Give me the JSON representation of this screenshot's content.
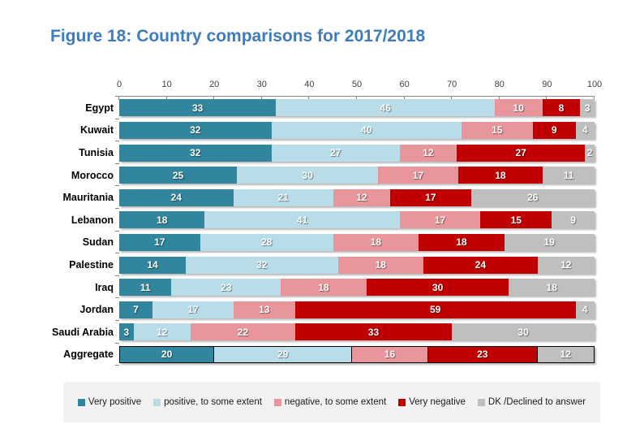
{
  "title": "Figure 18: Country comparisons for 2017/2018",
  "colors": {
    "title_blue": "#3E7BBF",
    "axis_gray": "#898989",
    "legend_background": "#F2F2F2",
    "bar_label_text": "#FFFFFF"
  },
  "chart_data": {
    "type": "bar",
    "stacked": true,
    "orientation": "horizontal",
    "title": "Figure 18: Country comparisons for 2017/2018",
    "xlim": [
      0,
      100
    ],
    "xticks": [
      0,
      10,
      20,
      30,
      40,
      50,
      60,
      70,
      80,
      90,
      100
    ],
    "grid": false,
    "legend_position": "bottom",
    "categories": [
      "Egypt",
      "Kuwait",
      "Tunisia",
      "Morocco",
      "Mauritania",
      "Lebanon",
      "Sudan",
      "Palestine",
      "Iraq",
      "Jordan",
      "Saudi Arabia",
      "Aggregate"
    ],
    "outlined_categories": [
      "Aggregate"
    ],
    "series": [
      {
        "name": "Very positive",
        "color": "#31859C",
        "values": [
          33,
          32,
          32,
          25,
          24,
          18,
          17,
          14,
          11,
          7,
          3,
          20
        ]
      },
      {
        "name": "positive, to some extent",
        "color": "#B9DDE8",
        "values": [
          46,
          40,
          27,
          30,
          21,
          41,
          28,
          32,
          23,
          17,
          12,
          29
        ]
      },
      {
        "name": "negative, to some extent",
        "color": "#E8969B",
        "values": [
          10,
          15,
          12,
          17,
          12,
          17,
          18,
          18,
          18,
          13,
          22,
          16
        ]
      },
      {
        "name": "Very negative",
        "color": "#C00000",
        "values": [
          8,
          9,
          27,
          18,
          17,
          15,
          18,
          24,
          30,
          59,
          33,
          23
        ]
      },
      {
        "name": "DK /Declined to answer",
        "color": "#BFBFBF",
        "values": [
          3,
          4,
          2,
          11,
          26,
          9,
          19,
          12,
          18,
          4,
          30,
          12
        ]
      }
    ]
  }
}
